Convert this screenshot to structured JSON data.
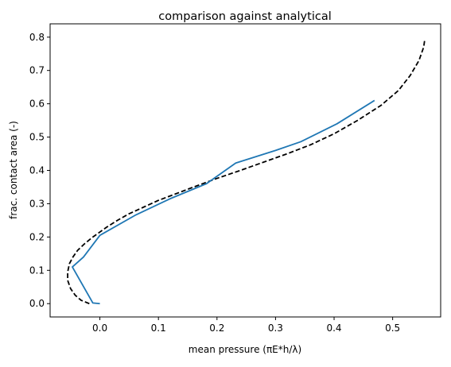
{
  "chart_data": {
    "type": "line",
    "title": "comparison against analytical",
    "xlabel": "mean pressure (πE*h/λ)",
    "ylabel": "frac. contact area (-)",
    "xlim": [
      -0.085,
      0.582
    ],
    "ylim": [
      -0.04,
      0.84
    ],
    "x_ticks": [
      0.0,
      0.1,
      0.2,
      0.3,
      0.4,
      0.5
    ],
    "x_tick_labels": [
      "0.0",
      "0.1",
      "0.2",
      "0.3",
      "0.4",
      "0.5"
    ],
    "y_ticks": [
      0.0,
      0.1,
      0.2,
      0.3,
      0.4,
      0.5,
      0.6,
      0.7,
      0.8
    ],
    "y_tick_labels": [
      "0.0",
      "0.1",
      "0.2",
      "0.3",
      "0.4",
      "0.5",
      "0.6",
      "0.7",
      "0.8"
    ],
    "grid": false,
    "legend": false,
    "series": [
      {
        "style": "dashed",
        "color": "#000000",
        "points": [
          [
            -0.018,
            0.0
          ],
          [
            -0.032,
            0.01
          ],
          [
            -0.042,
            0.025
          ],
          [
            -0.05,
            0.045
          ],
          [
            -0.055,
            0.07
          ],
          [
            -0.055,
            0.095
          ],
          [
            -0.052,
            0.12
          ],
          [
            -0.046,
            0.14
          ],
          [
            -0.038,
            0.16
          ],
          [
            -0.026,
            0.18
          ],
          [
            -0.012,
            0.2
          ],
          [
            0.0,
            0.215
          ],
          [
            0.012,
            0.23
          ],
          [
            0.03,
            0.25
          ],
          [
            0.05,
            0.27
          ],
          [
            0.075,
            0.29
          ],
          [
            0.1,
            0.31
          ],
          [
            0.13,
            0.33
          ],
          [
            0.16,
            0.35
          ],
          [
            0.2,
            0.376
          ],
          [
            0.24,
            0.4
          ],
          [
            0.28,
            0.425
          ],
          [
            0.32,
            0.45
          ],
          [
            0.36,
            0.477
          ],
          [
            0.4,
            0.51
          ],
          [
            0.44,
            0.55
          ],
          [
            0.48,
            0.595
          ],
          [
            0.51,
            0.64
          ],
          [
            0.53,
            0.685
          ],
          [
            0.545,
            0.73
          ],
          [
            0.553,
            0.77
          ],
          [
            0.555,
            0.795
          ]
        ]
      },
      {
        "style": "solid",
        "color": "#1f77b4",
        "points": [
          [
            0.0,
            0.0
          ],
          [
            -0.012,
            0.002
          ],
          [
            -0.047,
            0.11
          ],
          [
            -0.028,
            0.14
          ],
          [
            0.0,
            0.205
          ],
          [
            0.06,
            0.265
          ],
          [
            0.12,
            0.315
          ],
          [
            0.182,
            0.36
          ],
          [
            0.232,
            0.422
          ],
          [
            0.3,
            0.46
          ],
          [
            0.343,
            0.486
          ],
          [
            0.405,
            0.54
          ],
          [
            0.469,
            0.61
          ]
        ]
      }
    ]
  }
}
